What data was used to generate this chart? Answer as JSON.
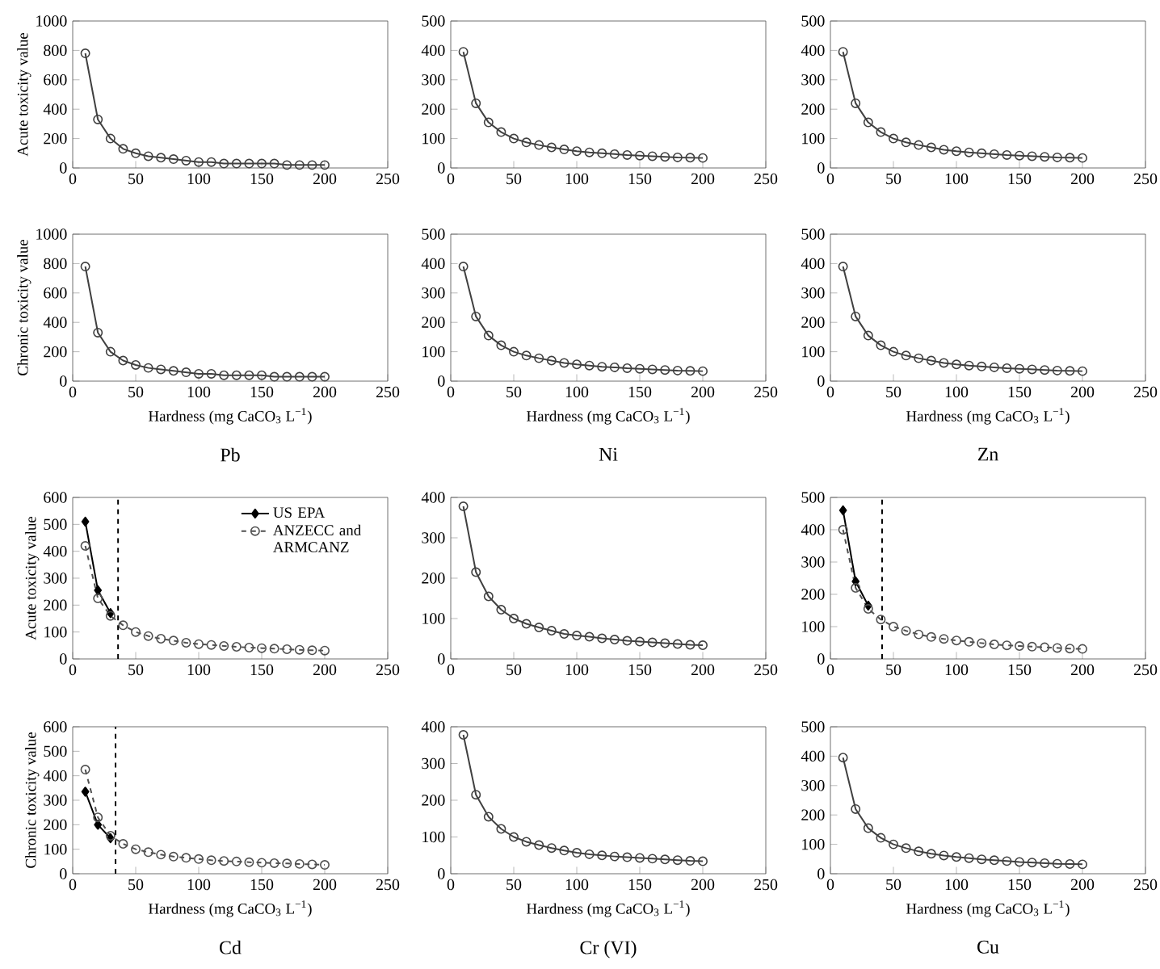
{
  "chart_data": [
    {
      "type": "line",
      "ylabel": "Acute toxicity value",
      "xlim": [
        0,
        250
      ],
      "xticks": [
        0,
        50,
        100,
        150,
        200,
        250
      ],
      "ylim": [
        0,
        1000
      ],
      "yticks": [
        0,
        200,
        400,
        600,
        800,
        1000
      ],
      "marker": "circle",
      "x": [
        10,
        20,
        30,
        40,
        50,
        60,
        70,
        80,
        90,
        100,
        110,
        120,
        130,
        140,
        150,
        160,
        170,
        180,
        190,
        200
      ],
      "series": [
        {
          "color": "#404040",
          "values": [
            780,
            330,
            200,
            130,
            100,
            80,
            70,
            60,
            50,
            40,
            40,
            30,
            30,
            30,
            30,
            30,
            20,
            20,
            20,
            20
          ]
        }
      ]
    },
    {
      "type": "line",
      "xlim": [
        0,
        250
      ],
      "xticks": [
        0,
        50,
        100,
        150,
        200,
        250
      ],
      "ylim": [
        0,
        500
      ],
      "yticks": [
        0,
        100,
        200,
        300,
        400,
        500
      ],
      "marker": "circle",
      "x": [
        10,
        20,
        30,
        40,
        50,
        60,
        70,
        80,
        90,
        100,
        110,
        120,
        130,
        140,
        150,
        160,
        170,
        180,
        190,
        200
      ],
      "series": [
        {
          "color": "#404040",
          "values": [
            395,
            220,
            155,
            122,
            100,
            87,
            78,
            70,
            63,
            57,
            53,
            50,
            47,
            44,
            42,
            40,
            38,
            36,
            35,
            34
          ]
        }
      ]
    },
    {
      "type": "line",
      "xlim": [
        0,
        250
      ],
      "xticks": [
        0,
        50,
        100,
        150,
        200,
        250
      ],
      "ylim": [
        0,
        500
      ],
      "yticks": [
        0,
        100,
        200,
        300,
        400,
        500
      ],
      "marker": "circle",
      "x": [
        10,
        20,
        30,
        40,
        50,
        60,
        70,
        80,
        90,
        100,
        110,
        120,
        130,
        140,
        150,
        160,
        170,
        180,
        190,
        200
      ],
      "series": [
        {
          "color": "#404040",
          "values": [
            395,
            220,
            155,
            122,
            100,
            87,
            78,
            70,
            62,
            57,
            53,
            50,
            47,
            44,
            42,
            40,
            38,
            36,
            35,
            34
          ]
        }
      ]
    },
    {
      "type": "line",
      "ylabel": "Chronic toxicity value",
      "xlabel": "Hardness (mg CaCO$_{3}$ L$^{−1}$)",
      "annotations": [
        "Pb"
      ],
      "xlim": [
        0,
        250
      ],
      "xticks": [
        0,
        50,
        100,
        150,
        200,
        250
      ],
      "ylim": [
        0,
        1000
      ],
      "yticks": [
        0,
        200,
        400,
        600,
        800,
        1000
      ],
      "marker": "circle",
      "x": [
        10,
        20,
        30,
        40,
        50,
        60,
        70,
        80,
        90,
        100,
        110,
        120,
        130,
        140,
        150,
        160,
        170,
        180,
        190,
        200
      ],
      "series": [
        {
          "color": "#404040",
          "values": [
            780,
            330,
            200,
            140,
            110,
            90,
            80,
            70,
            60,
            50,
            50,
            40,
            40,
            40,
            40,
            30,
            30,
            30,
            30,
            30
          ]
        }
      ]
    },
    {
      "type": "line",
      "xlabel": "Hardness (mg CaCO$_{3}$ L$^{−1}$)",
      "annotations": [
        "Ni"
      ],
      "xlim": [
        0,
        250
      ],
      "xticks": [
        0,
        50,
        100,
        150,
        200,
        250
      ],
      "ylim": [
        0,
        500
      ],
      "yticks": [
        0,
        100,
        200,
        300,
        400,
        500
      ],
      "marker": "circle",
      "x": [
        10,
        20,
        30,
        40,
        50,
        60,
        70,
        80,
        90,
        100,
        110,
        120,
        130,
        140,
        150,
        160,
        170,
        180,
        190,
        200
      ],
      "series": [
        {
          "color": "#404040",
          "values": [
            390,
            220,
            155,
            122,
            100,
            87,
            78,
            70,
            62,
            57,
            53,
            49,
            47,
            44,
            42,
            40,
            38,
            36,
            35,
            34
          ]
        }
      ]
    },
    {
      "type": "line",
      "xlabel": "Hardness (mg CaCO$_{3}$ L$^{−1}$)",
      "annotations": [
        "Zn"
      ],
      "xlim": [
        0,
        250
      ],
      "xticks": [
        0,
        50,
        100,
        150,
        200,
        250
      ],
      "ylim": [
        0,
        500
      ],
      "yticks": [
        0,
        100,
        200,
        300,
        400,
        500
      ],
      "marker": "circle",
      "x": [
        10,
        20,
        30,
        40,
        50,
        60,
        70,
        80,
        90,
        100,
        110,
        120,
        130,
        140,
        150,
        160,
        170,
        180,
        190,
        200
      ],
      "series": [
        {
          "color": "#404040",
          "values": [
            390,
            220,
            155,
            122,
            100,
            87,
            78,
            70,
            62,
            57,
            53,
            50,
            47,
            44,
            42,
            40,
            38,
            36,
            35,
            34
          ]
        }
      ]
    },
    {
      "type": "line",
      "ylabel": "Acute toxicity value",
      "xlim": [
        0,
        250
      ],
      "xticks": [
        0,
        50,
        100,
        150,
        200,
        250
      ],
      "ylim": [
        0,
        600
      ],
      "yticks": [
        0,
        100,
        200,
        300,
        400,
        500,
        600
      ],
      "marker": "circle",
      "legend": "top right",
      "x": [
        10,
        20,
        30,
        40,
        50,
        60,
        70,
        80,
        90,
        100,
        110,
        120,
        130,
        140,
        150,
        160,
        170,
        180,
        190,
        200
      ],
      "ref_lines": [
        {
          "axis": "x",
          "value": 36,
          "line_style": "dashed",
          "color": "#000000"
        }
      ],
      "series": [
        {
          "name": "US EPA",
          "color": "#000000",
          "marker": "diamond",
          "line_style": "solid",
          "x": [
            10,
            20,
            30
          ],
          "values": [
            510,
            255,
            170
          ]
        },
        {
          "name": "ANZECC and ARMCANZ",
          "color": "#505050",
          "line_style": "dashed",
          "values": [
            420,
            225,
            160,
            125,
            100,
            85,
            75,
            68,
            60,
            55,
            52,
            48,
            45,
            42,
            40,
            38,
            36,
            34,
            32,
            31
          ]
        }
      ]
    },
    {
      "type": "line",
      "xlim": [
        0,
        250
      ],
      "xticks": [
        0,
        50,
        100,
        150,
        200,
        250
      ],
      "ylim": [
        0,
        400
      ],
      "yticks": [
        0,
        100,
        200,
        300,
        400
      ],
      "marker": "circle",
      "x": [
        10,
        20,
        30,
        40,
        50,
        60,
        70,
        80,
        90,
        100,
        110,
        120,
        130,
        140,
        150,
        160,
        170,
        180,
        190,
        200
      ],
      "series": [
        {
          "color": "#404040",
          "values": [
            378,
            215,
            155,
            122,
            100,
            87,
            78,
            70,
            62,
            58,
            55,
            51,
            48,
            45,
            43,
            41,
            39,
            37,
            35,
            34
          ]
        }
      ]
    },
    {
      "type": "line",
      "xlim": [
        0,
        250
      ],
      "xticks": [
        0,
        50,
        100,
        150,
        200,
        250
      ],
      "ylim": [
        0,
        500
      ],
      "yticks": [
        0,
        100,
        200,
        300,
        400,
        500
      ],
      "marker": "circle",
      "x": [
        10,
        20,
        30,
        40,
        50,
        60,
        70,
        80,
        90,
        100,
        110,
        120,
        130,
        140,
        150,
        160,
        170,
        180,
        190,
        200
      ],
      "ref_lines": [
        {
          "axis": "x",
          "value": 41,
          "line_style": "dashed",
          "color": "#000000"
        }
      ],
      "series": [
        {
          "color": "#000000",
          "marker": "diamond",
          "line_style": "solid",
          "x": [
            10,
            20,
            30
          ],
          "values": [
            460,
            240,
            165
          ]
        },
        {
          "color": "#505050",
          "line_style": "dashed",
          "values": [
            400,
            220,
            155,
            122,
            100,
            87,
            76,
            68,
            62,
            57,
            53,
            49,
            45,
            42,
            40,
            38,
            36,
            34,
            32,
            31
          ]
        }
      ]
    },
    {
      "type": "line",
      "ylabel": "Chronic toxicity value",
      "xlabel": "Hardness (mg CaCO$_{3}$ L$^{−1}$)",
      "annotations": [
        "Cd"
      ],
      "xlim": [
        0,
        250
      ],
      "xticks": [
        0,
        50,
        100,
        150,
        200,
        250
      ],
      "ylim": [
        0,
        600
      ],
      "yticks": [
        0,
        100,
        200,
        300,
        400,
        500,
        600
      ],
      "marker": "circle",
      "x": [
        10,
        20,
        30,
        40,
        50,
        60,
        70,
        80,
        90,
        100,
        110,
        120,
        130,
        140,
        150,
        160,
        170,
        180,
        190,
        200
      ],
      "ref_lines": [
        {
          "axis": "x",
          "value": 34,
          "line_style": "dashed",
          "color": "#000000"
        }
      ],
      "series": [
        {
          "color": "#000000",
          "marker": "diamond",
          "line_style": "solid",
          "x": [
            10,
            20,
            30
          ],
          "values": [
            335,
            200,
            145
          ]
        },
        {
          "color": "#505050",
          "line_style": "dashed",
          "values": [
            425,
            230,
            155,
            122,
            100,
            88,
            78,
            70,
            65,
            60,
            55,
            52,
            50,
            47,
            45,
            43,
            42,
            40,
            38,
            36
          ]
        }
      ]
    },
    {
      "type": "line",
      "xlabel": "Hardness (mg CaCO$_{3}$ L$^{−1}$)",
      "annotations": [
        "Cr (VI)"
      ],
      "xlim": [
        0,
        250
      ],
      "xticks": [
        0,
        50,
        100,
        150,
        200,
        250
      ],
      "ylim": [
        0,
        400
      ],
      "yticks": [
        0,
        100,
        200,
        300,
        400
      ],
      "marker": "circle",
      "x": [
        10,
        20,
        30,
        40,
        50,
        60,
        70,
        80,
        90,
        100,
        110,
        120,
        130,
        140,
        150,
        160,
        170,
        180,
        190,
        200
      ],
      "series": [
        {
          "color": "#404040",
          "values": [
            378,
            215,
            155,
            122,
            100,
            87,
            78,
            70,
            63,
            57,
            53,
            50,
            47,
            45,
            43,
            41,
            39,
            37,
            35,
            34
          ]
        }
      ]
    },
    {
      "type": "line",
      "xlabel": "Hardness (mg CaCO$_{3}$ L$^{−1}$)",
      "annotations": [
        "Cu"
      ],
      "xlim": [
        0,
        250
      ],
      "xticks": [
        0,
        50,
        100,
        150,
        200,
        250
      ],
      "ylim": [
        0,
        500
      ],
      "yticks": [
        0,
        100,
        200,
        300,
        400,
        500
      ],
      "marker": "circle",
      "x": [
        10,
        20,
        30,
        40,
        50,
        60,
        70,
        80,
        90,
        100,
        110,
        120,
        130,
        140,
        150,
        160,
        170,
        180,
        190,
        200
      ],
      "series": [
        {
          "color": "#404040",
          "values": [
            395,
            220,
            155,
            122,
            100,
            87,
            76,
            68,
            62,
            57,
            53,
            49,
            46,
            43,
            40,
            38,
            36,
            34,
            33,
            32
          ]
        }
      ]
    }
  ]
}
